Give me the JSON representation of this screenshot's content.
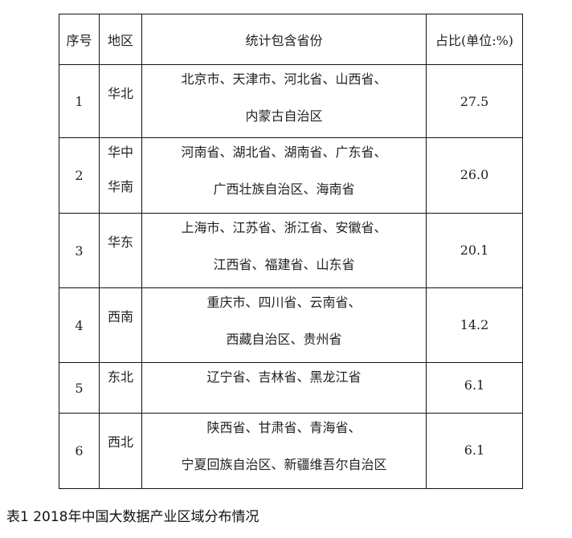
{
  "table": {
    "headers": [
      "序号",
      "地区",
      "统计包含省份",
      "占比(单位:%)"
    ],
    "rows": [
      {
        "no": "1",
        "region": [
          "华北"
        ],
        "provinces": [
          "北京市、天津市、河北省、山西省、",
          "内蒙古自治区"
        ],
        "share": "27.5"
      },
      {
        "no": "2",
        "region": [
          "华中",
          "华南"
        ],
        "provinces": [
          "河南省、湖北省、湖南省、广东省、",
          "广西壮族自治区、海南省"
        ],
        "share": "26.0"
      },
      {
        "no": "3",
        "region": [
          "华东"
        ],
        "provinces": [
          "上海市、江苏省、浙江省、安徽省、",
          "江西省、福建省、山东省"
        ],
        "share": "20.1"
      },
      {
        "no": "4",
        "region": [
          "西南"
        ],
        "provinces": [
          "重庆市、四川省、云南省、",
          "西藏自治区、贵州省"
        ],
        "share": "14.2"
      },
      {
        "no": "5",
        "region": [
          "东北"
        ],
        "provinces": [
          "辽宁省、吉林省、黑龙江省"
        ],
        "share": "6.1"
      },
      {
        "no": "6",
        "region": [
          "西北"
        ],
        "provinces": [
          "陕西省、甘肃省、青海省、",
          "宁夏回族自治区、新疆维吾尔自治区"
        ],
        "share": "6.1"
      }
    ]
  },
  "caption": "表1 2018年中国大数据产业区域分布情况"
}
